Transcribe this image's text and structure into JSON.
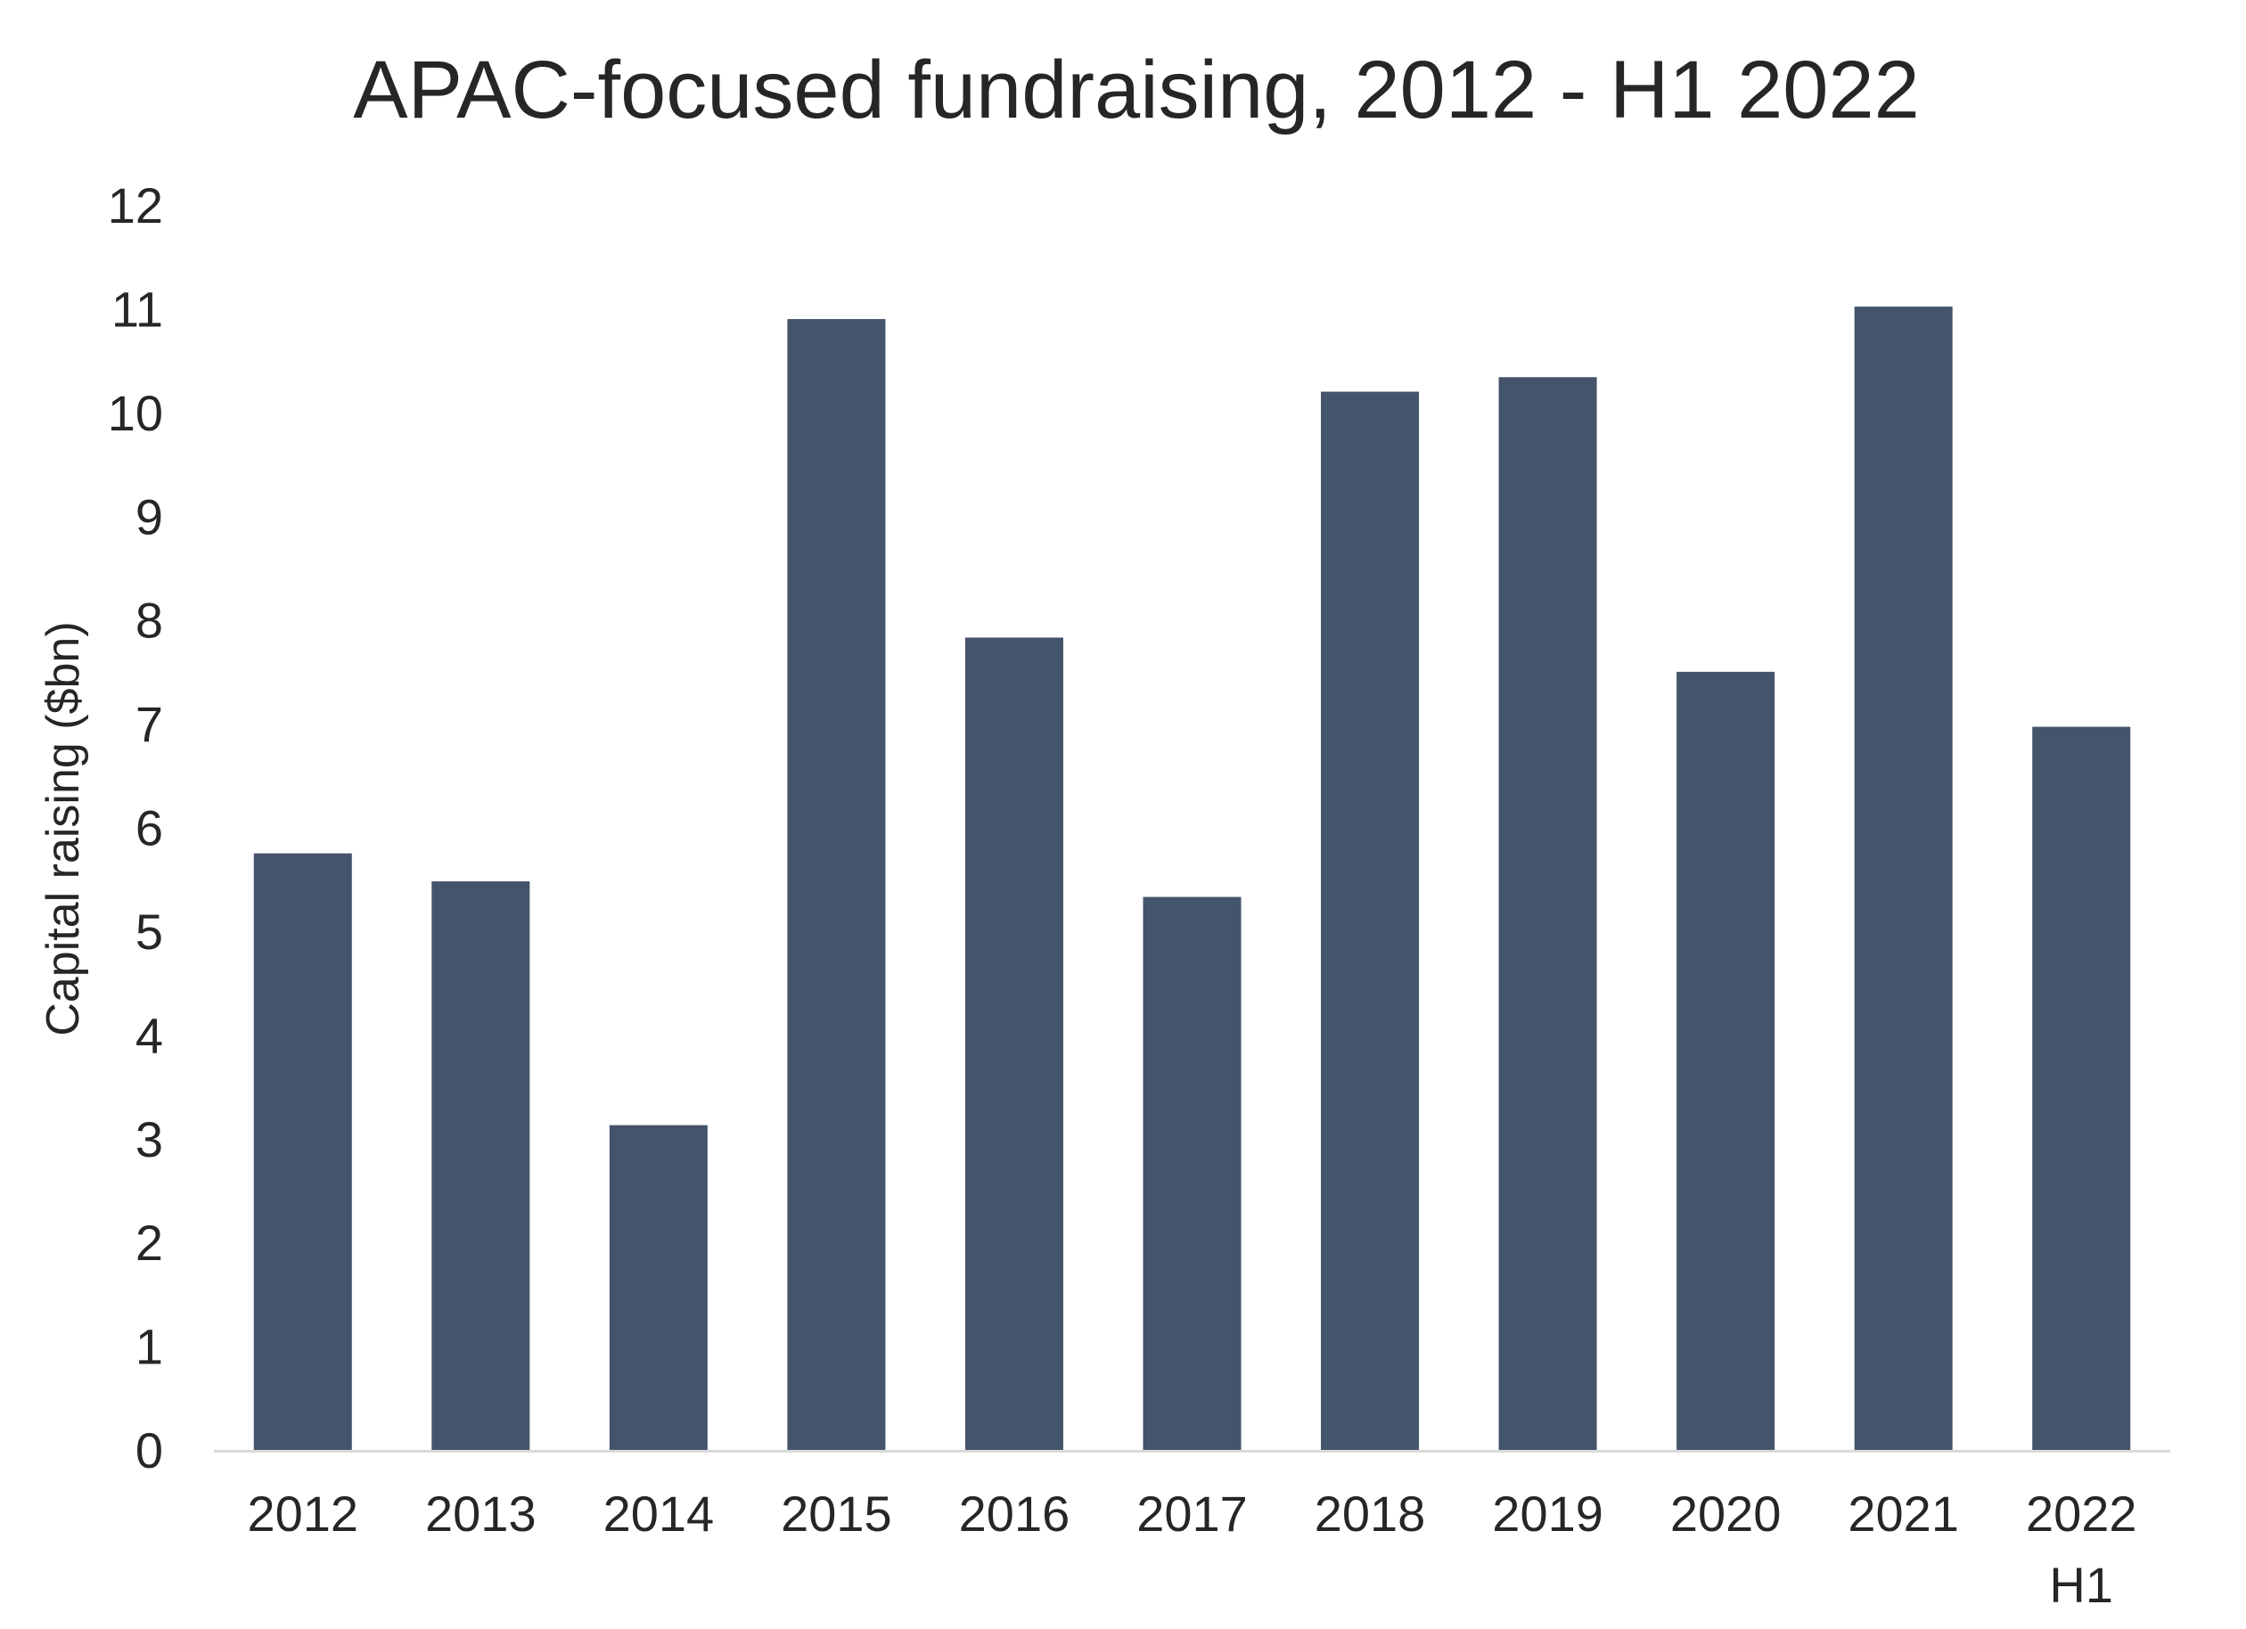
{
  "chart_data": {
    "type": "bar",
    "title": "APAC-focused fundraising, 2012 - H1 2022",
    "xlabel": "",
    "ylabel": "Capital raising ($bn)",
    "categories": [
      [
        "2012"
      ],
      [
        "2013"
      ],
      [
        "2014"
      ],
      [
        "2015"
      ],
      [
        "2016"
      ],
      [
        "2017"
      ],
      [
        "2018"
      ],
      [
        "2019"
      ],
      [
        "2020"
      ],
      [
        "2021"
      ],
      [
        "2022",
        "H1"
      ]
    ],
    "values": [
      5.75,
      5.48,
      3.13,
      10.9,
      7.83,
      5.33,
      10.2,
      10.34,
      7.5,
      11.02,
      6.97
    ],
    "ylim": [
      0,
      12
    ],
    "yticks": [
      0,
      1,
      2,
      3,
      4,
      5,
      6,
      7,
      8,
      9,
      10,
      11,
      12
    ],
    "grid": false,
    "legend": "none",
    "colors": {
      "bar": "#44546a",
      "axis": "#d9d9d9",
      "text": "#262626"
    }
  }
}
